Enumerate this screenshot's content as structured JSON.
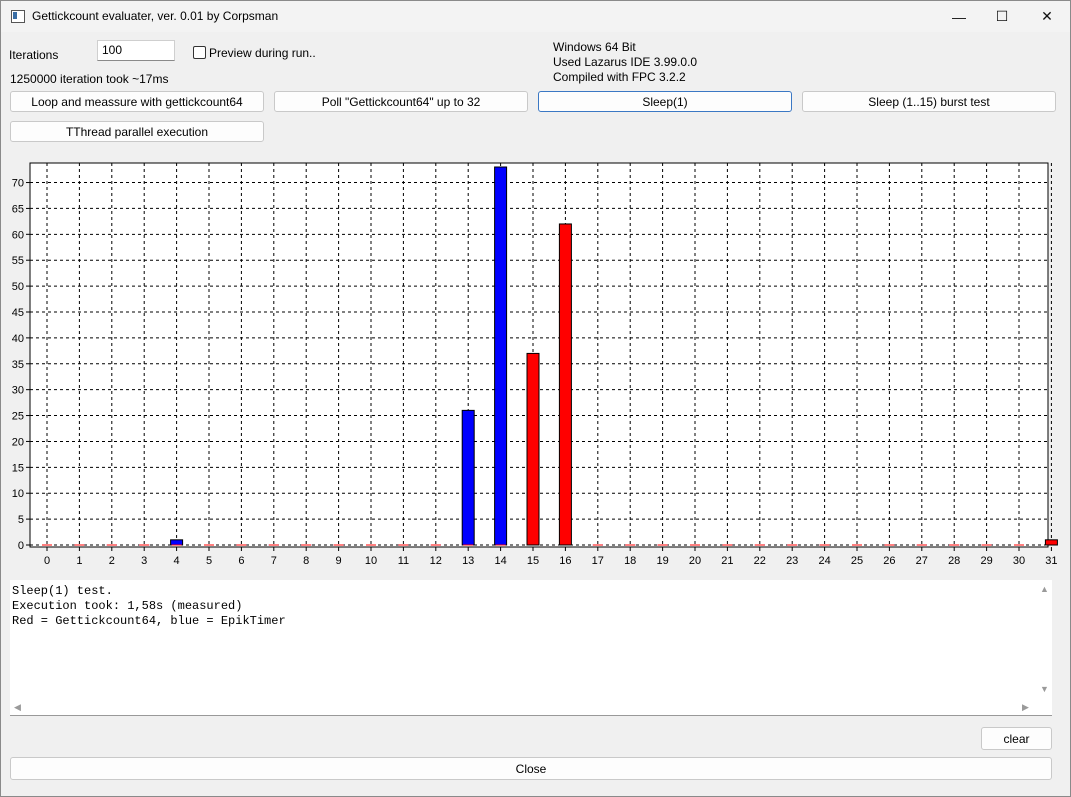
{
  "window": {
    "title": "Gettickcount evaluater, ver. 0.01 by Corpsman",
    "minimize": "—",
    "maximize": "☐",
    "close": "✕"
  },
  "controls": {
    "iterations_label": "Iterations",
    "iterations_value": "100",
    "preview_label": "Preview during run..",
    "preview_checked": false,
    "timing_text": "1250000 iteration took ~17ms"
  },
  "info": {
    "os": "Windows 64 Bit",
    "ide": "Used Lazarus IDE 3.99.0.0",
    "compiler": "Compiled with FPC 3.2.2"
  },
  "buttons": {
    "loop": "Loop and meassure with gettickcount64",
    "poll": "Poll \"Gettickcount64\" up to 32",
    "sleep1": "Sleep(1)",
    "burst": "Sleep (1..15) burst test",
    "thread": "TThread parallel execution",
    "clear": "clear",
    "close": "Close"
  },
  "memo": {
    "lines": [
      "Sleep(1) test.",
      "Execution took: 1,58s (measured)",
      "Red = Gettickcount64, blue = EpikTimer"
    ]
  },
  "chart_data": {
    "type": "bar",
    "categories": [
      0,
      1,
      2,
      3,
      4,
      5,
      6,
      7,
      8,
      9,
      10,
      11,
      12,
      13,
      14,
      15,
      16,
      17,
      18,
      19,
      20,
      21,
      22,
      23,
      24,
      25,
      26,
      27,
      28,
      29,
      30,
      31
    ],
    "ylim": [
      0,
      73
    ],
    "yticks": [
      0,
      5,
      10,
      15,
      20,
      25,
      30,
      35,
      40,
      45,
      50,
      55,
      60,
      65,
      70
    ],
    "grid": true,
    "series": [
      {
        "color": "#0000ff",
        "values": [
          0,
          0,
          0,
          0,
          1,
          0,
          0,
          0,
          0,
          0,
          0,
          0,
          0,
          26,
          73,
          0,
          0,
          0,
          0,
          0,
          0,
          0,
          0,
          0,
          0,
          0,
          0,
          0,
          0,
          0,
          0,
          0
        ]
      },
      {
        "color": "#ff0000",
        "values": [
          0,
          0,
          0,
          0,
          0,
          0,
          0,
          0,
          0,
          0,
          0,
          0,
          0,
          0,
          0,
          37,
          62,
          0,
          0,
          0,
          0,
          0,
          0,
          0,
          0,
          0,
          0,
          0,
          0,
          0,
          0,
          1
        ]
      }
    ]
  }
}
